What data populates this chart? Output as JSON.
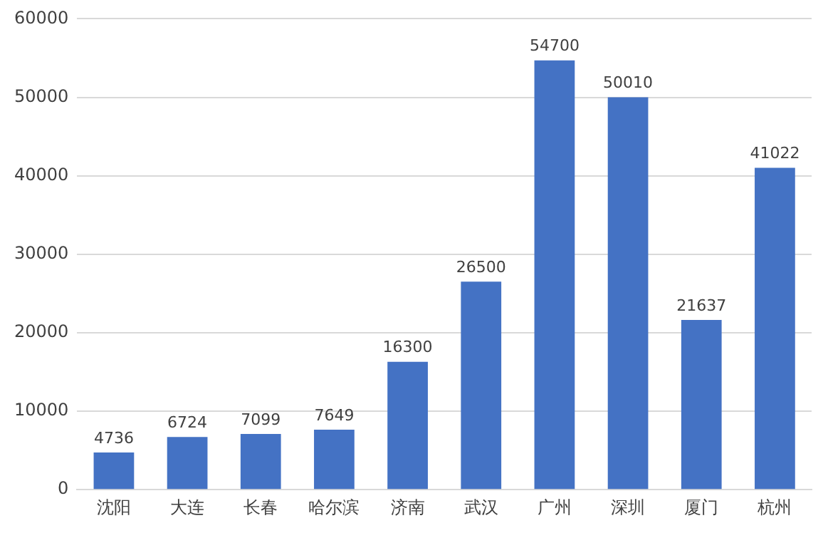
{
  "chart_data": {
    "type": "bar",
    "categories": [
      "沈阳",
      "大连",
      "长春",
      "哈尔滨",
      "济南",
      "武汉",
      "广州",
      "深圳",
      "厦门",
      "杭州"
    ],
    "values": [
      4736,
      6724,
      7099,
      7649,
      16300,
      26500,
      54700,
      50010,
      21637,
      41022
    ],
    "color": "#4472c4",
    "ylim": [
      0,
      60000
    ],
    "yticks": [
      0,
      10000,
      20000,
      30000,
      40000,
      50000,
      60000
    ],
    "grid": "y",
    "data_labels": true,
    "legend": false
  }
}
